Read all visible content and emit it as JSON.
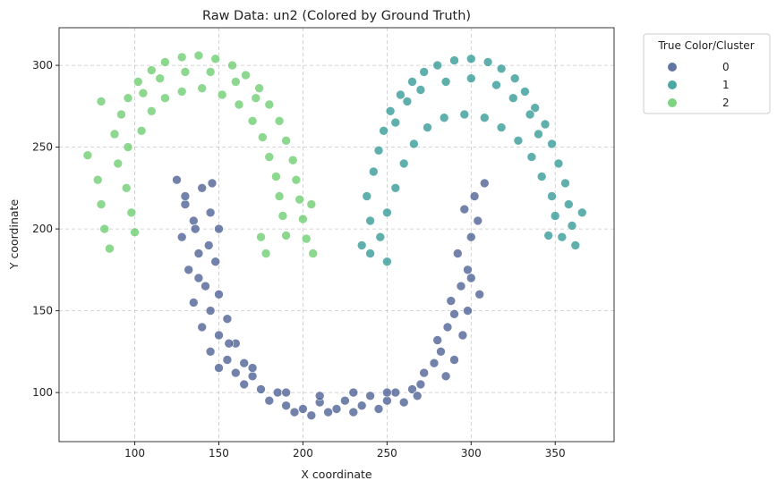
{
  "chart_data": {
    "type": "scatter",
    "title": "Raw Data: un2 (Colored by Ground Truth)",
    "xlabel": "X coordinate",
    "ylabel": "Y coordinate",
    "xlim": [
      55,
      385
    ],
    "ylim": [
      70,
      323
    ],
    "xticks": [
      "100",
      "150",
      "200",
      "250",
      "300",
      "350"
    ],
    "xtick_values": [
      100,
      150,
      200,
      250,
      300,
      350
    ],
    "yticks": [
      "100",
      "150",
      "200",
      "250",
      "300"
    ],
    "ytick_values": [
      100,
      150,
      200,
      250,
      300
    ],
    "grid": true,
    "legend": {
      "title": "True Color/Cluster",
      "placement": "outside-top-right",
      "entries": [
        "0",
        "1",
        "2"
      ]
    },
    "series": [
      {
        "name": "0",
        "color": "#3b528b",
        "description_shape": "U-shaped band",
        "points": [
          [
            125,
            230
          ],
          [
            130,
            215
          ],
          [
            135,
            205
          ],
          [
            140,
            225
          ],
          [
            145,
            210
          ],
          [
            150,
            200
          ],
          [
            128,
            195
          ],
          [
            138,
            185
          ],
          [
            148,
            180
          ],
          [
            132,
            175
          ],
          [
            142,
            165
          ],
          [
            150,
            160
          ],
          [
            135,
            155
          ],
          [
            145,
            150
          ],
          [
            155,
            145
          ],
          [
            140,
            140
          ],
          [
            150,
            135
          ],
          [
            160,
            130
          ],
          [
            145,
            125
          ],
          [
            155,
            120
          ],
          [
            165,
            118
          ],
          [
            150,
            115
          ],
          [
            160,
            112
          ],
          [
            170,
            110
          ],
          [
            165,
            105
          ],
          [
            175,
            102
          ],
          [
            185,
            100
          ],
          [
            180,
            95
          ],
          [
            190,
            92
          ],
          [
            200,
            90
          ],
          [
            195,
            88
          ],
          [
            205,
            86
          ],
          [
            215,
            88
          ],
          [
            210,
            94
          ],
          [
            220,
            90
          ],
          [
            230,
            88
          ],
          [
            225,
            95
          ],
          [
            235,
            92
          ],
          [
            245,
            90
          ],
          [
            240,
            98
          ],
          [
            250,
            95
          ],
          [
            260,
            94
          ],
          [
            255,
            100
          ],
          [
            265,
            102
          ],
          [
            270,
            105
          ],
          [
            272,
            112
          ],
          [
            278,
            118
          ],
          [
            282,
            125
          ],
          [
            280,
            132
          ],
          [
            286,
            140
          ],
          [
            290,
            148
          ],
          [
            288,
            156
          ],
          [
            294,
            165
          ],
          [
            298,
            175
          ],
          [
            292,
            185
          ],
          [
            300,
            195
          ],
          [
            304,
            205
          ],
          [
            296,
            212
          ],
          [
            302,
            220
          ],
          [
            308,
            228
          ],
          [
            285,
            110
          ],
          [
            290,
            120
          ],
          [
            295,
            135
          ],
          [
            298,
            150
          ],
          [
            305,
            160
          ],
          [
            300,
            170
          ],
          [
            136,
            200
          ],
          [
            144,
            190
          ],
          [
            130,
            220
          ],
          [
            146,
            228
          ],
          [
            138,
            170
          ],
          [
            156,
            130
          ],
          [
            170,
            115
          ],
          [
            190,
            100
          ],
          [
            210,
            98
          ],
          [
            230,
            100
          ],
          [
            250,
            100
          ],
          [
            268,
            98
          ]
        ]
      },
      {
        "name": "1",
        "color": "#21918c",
        "description_shape": "arch (right)",
        "points": [
          [
            235,
            190
          ],
          [
            240,
            205
          ],
          [
            238,
            220
          ],
          [
            242,
            235
          ],
          [
            245,
            248
          ],
          [
            248,
            260
          ],
          [
            252,
            272
          ],
          [
            258,
            282
          ],
          [
            265,
            290
          ],
          [
            272,
            296
          ],
          [
            280,
            300
          ],
          [
            290,
            303
          ],
          [
            300,
            304
          ],
          [
            310,
            302
          ],
          [
            318,
            298
          ],
          [
            326,
            292
          ],
          [
            332,
            284
          ],
          [
            338,
            274
          ],
          [
            344,
            264
          ],
          [
            348,
            252
          ],
          [
            352,
            240
          ],
          [
            356,
            228
          ],
          [
            358,
            215
          ],
          [
            360,
            202
          ],
          [
            362,
            190
          ],
          [
            246,
            195
          ],
          [
            250,
            210
          ],
          [
            255,
            225
          ],
          [
            260,
            240
          ],
          [
            266,
            252
          ],
          [
            274,
            262
          ],
          [
            284,
            268
          ],
          [
            296,
            270
          ],
          [
            308,
            268
          ],
          [
            318,
            262
          ],
          [
            328,
            254
          ],
          [
            336,
            244
          ],
          [
            342,
            232
          ],
          [
            348,
            220
          ],
          [
            350,
            208
          ],
          [
            354,
            195
          ],
          [
            255,
            265
          ],
          [
            262,
            278
          ],
          [
            270,
            285
          ],
          [
            285,
            290
          ],
          [
            300,
            292
          ],
          [
            315,
            288
          ],
          [
            325,
            280
          ],
          [
            335,
            270
          ],
          [
            340,
            258
          ],
          [
            366,
            210
          ],
          [
            346,
            196
          ],
          [
            240,
            185
          ],
          [
            250,
            180
          ]
        ]
      },
      {
        "name": "2",
        "color": "#5ec962",
        "description_shape": "arch (left)",
        "points": [
          [
            72,
            245
          ],
          [
            78,
            230
          ],
          [
            80,
            215
          ],
          [
            82,
            200
          ],
          [
            85,
            188
          ],
          [
            88,
            258
          ],
          [
            92,
            270
          ],
          [
            96,
            280
          ],
          [
            102,
            290
          ],
          [
            110,
            297
          ],
          [
            118,
            302
          ],
          [
            128,
            305
          ],
          [
            138,
            306
          ],
          [
            148,
            304
          ],
          [
            158,
            300
          ],
          [
            166,
            294
          ],
          [
            174,
            286
          ],
          [
            180,
            276
          ],
          [
            186,
            266
          ],
          [
            190,
            254
          ],
          [
            194,
            242
          ],
          [
            196,
            230
          ],
          [
            198,
            218
          ],
          [
            200,
            206
          ],
          [
            202,
            194
          ],
          [
            90,
            240
          ],
          [
            95,
            225
          ],
          [
            98,
            210
          ],
          [
            100,
            198
          ],
          [
            104,
            260
          ],
          [
            110,
            272
          ],
          [
            118,
            280
          ],
          [
            128,
            284
          ],
          [
            140,
            286
          ],
          [
            152,
            282
          ],
          [
            162,
            276
          ],
          [
            170,
            266
          ],
          [
            176,
            256
          ],
          [
            180,
            244
          ],
          [
            184,
            232
          ],
          [
            186,
            220
          ],
          [
            188,
            208
          ],
          [
            190,
            196
          ],
          [
            96,
            250
          ],
          [
            105,
            283
          ],
          [
            115,
            292
          ],
          [
            130,
            296
          ],
          [
            145,
            296
          ],
          [
            160,
            290
          ],
          [
            172,
            280
          ],
          [
            205,
            215
          ],
          [
            206,
            185
          ],
          [
            175,
            195
          ],
          [
            178,
            185
          ],
          [
            80,
            278
          ]
        ]
      }
    ]
  }
}
